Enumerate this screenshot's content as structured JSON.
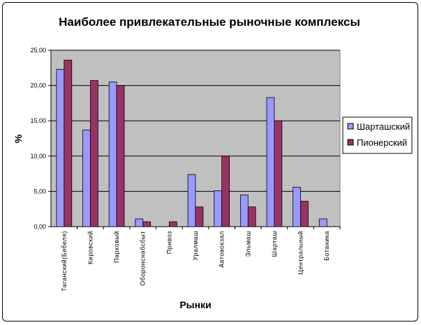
{
  "chart_data": {
    "type": "bar",
    "title": "Наиболее привлекательные рыночные комплексы",
    "xlabel": "Рынки",
    "ylabel": "%",
    "ylim": [
      0,
      25
    ],
    "yticks": [
      "0,00",
      "5,00",
      "10,00",
      "15,00",
      "20,00",
      "25,00"
    ],
    "ytick_values": [
      0,
      5,
      10,
      15,
      20,
      25
    ],
    "grid": true,
    "legend_position": "right",
    "categories": [
      "Таганский(Бебеля)",
      "Кировский",
      "Парковый",
      "Оборонснабсбыт",
      "Привоз",
      "Уралмаш",
      "Автовокзал",
      "Эльмаш",
      "Шарташ",
      "Центральный",
      "Ботаника"
    ],
    "series": [
      {
        "name": "Шарташский",
        "color": "#9999FF",
        "values": [
          22.3,
          13.7,
          20.5,
          1.1,
          0,
          7.4,
          5.1,
          4.5,
          18.3,
          5.6,
          1.1
        ]
      },
      {
        "name": "Пионерский",
        "color": "#993366",
        "values": [
          23.6,
          20.7,
          20.0,
          0.7,
          0.7,
          2.8,
          10.0,
          2.8,
          15.0,
          3.6,
          0
        ]
      }
    ],
    "plot_background": "#C0C0C0"
  }
}
